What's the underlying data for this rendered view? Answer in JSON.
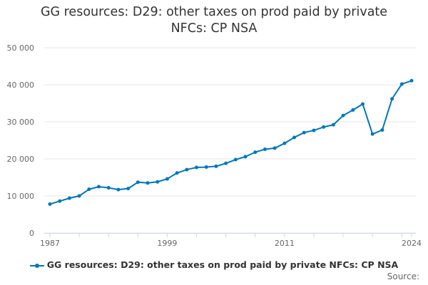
{
  "title": "GG resources: D29: other taxes on prod paid by private NFCs: CP NSA",
  "source_label": "Source:",
  "colors": {
    "series": "#0077b6",
    "grid": "#e6e6e6",
    "axis": "#ccd6eb",
    "text": "#666666"
  },
  "chart_data": {
    "type": "line",
    "title": "GG resources: D29: other taxes on prod paid by private NFCs: CP NSA",
    "xlabel": "",
    "ylabel": "",
    "x": [
      1987,
      1988,
      1989,
      1990,
      1991,
      1992,
      1993,
      1994,
      1995,
      1996,
      1997,
      1998,
      1999,
      2000,
      2001,
      2002,
      2003,
      2004,
      2005,
      2006,
      2007,
      2008,
      2009,
      2010,
      2011,
      2012,
      2013,
      2014,
      2015,
      2016,
      2017,
      2018,
      2019,
      2020,
      2021,
      2022,
      2023,
      2024
    ],
    "series": [
      {
        "name": "GG resources: D29: other taxes on prod paid by private NFCs: CP NSA",
        "values": [
          7800,
          8600,
          9400,
          10000,
          11800,
          12500,
          12200,
          11700,
          12000,
          13700,
          13500,
          13800,
          14600,
          16200,
          17100,
          17700,
          17800,
          18000,
          18800,
          19800,
          20600,
          21800,
          22600,
          22900,
          24200,
          25800,
          27100,
          27700,
          28600,
          29200,
          31700,
          33200,
          34800,
          26700,
          27800,
          36200,
          40200,
          41100
        ]
      }
    ],
    "ylim": [
      0,
      50000
    ],
    "yticks": [
      0,
      10000,
      20000,
      30000,
      40000,
      50000
    ],
    "ytick_labels": [
      "0",
      "10 000",
      "20 000",
      "30 000",
      "40 000",
      "50 000"
    ],
    "xtick_labels": [
      "1987",
      "1999",
      "2011",
      "2024"
    ],
    "legend": "bottom-center",
    "grid": true
  }
}
